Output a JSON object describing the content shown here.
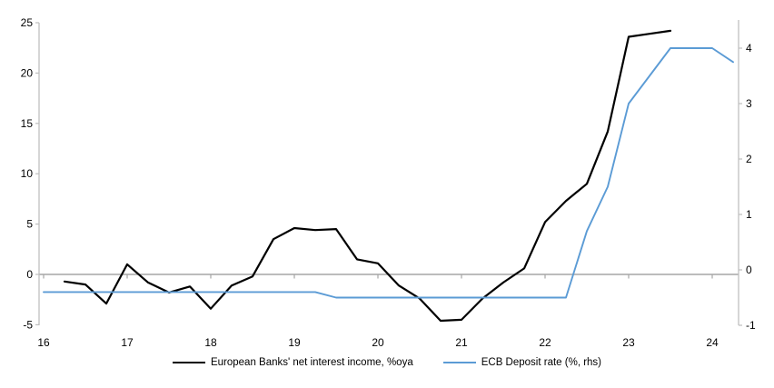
{
  "chart_data": {
    "type": "line",
    "x_axis": {
      "ticks": [
        16,
        17,
        18,
        19,
        20,
        21,
        22,
        23,
        24
      ],
      "tick_labels": [
        "16",
        "17",
        "18",
        "19",
        "20",
        "21",
        "22",
        "23",
        "24"
      ],
      "range": [
        15.95,
        24.37
      ]
    },
    "left_axis": {
      "ticks": [
        -5,
        0,
        5,
        10,
        15,
        20,
        25
      ],
      "tick_labels": [
        "-5",
        "0",
        "5",
        "10",
        "15",
        "20",
        "25"
      ],
      "range": [
        -5,
        25
      ]
    },
    "right_axis": {
      "ticks": [
        -1,
        0,
        1,
        2,
        3,
        4
      ],
      "tick_labels": [
        "-1",
        "0",
        "1",
        "2",
        "3",
        "4"
      ],
      "range": [
        -1,
        4.55
      ]
    },
    "grid": false,
    "zero_line": true,
    "legend_position": "bottom-center",
    "series": [
      {
        "name": "European Banks' net interest income, %oya",
        "axis": "left",
        "color": "#000000",
        "stroke_width": 2.2,
        "x": [
          16.25,
          16.5,
          16.75,
          17.0,
          17.25,
          17.5,
          17.75,
          18.0,
          18.25,
          18.5,
          18.75,
          19.0,
          19.25,
          19.5,
          19.75,
          20.0,
          20.25,
          20.5,
          20.75,
          21.0,
          21.25,
          21.5,
          21.75,
          22.0,
          22.25,
          22.5,
          22.75,
          23.0,
          23.25,
          23.5
        ],
        "values": [
          -0.7,
          -1.0,
          -2.9,
          1.0,
          -0.8,
          -1.8,
          -1.2,
          -3.4,
          -1.1,
          -0.2,
          3.5,
          4.6,
          4.4,
          4.5,
          1.5,
          1.1,
          -1.1,
          -2.4,
          -4.6,
          -4.5,
          -2.4,
          -0.8,
          0.6,
          5.2,
          7.3,
          9.0,
          14.2,
          23.6,
          23.9,
          24.2
        ]
      },
      {
        "name": "ECB Deposit rate (%, rhs)",
        "axis": "right",
        "color": "#5B9BD5",
        "stroke_width": 1.9,
        "x": [
          16.0,
          16.25,
          16.5,
          16.75,
          17.0,
          17.25,
          17.5,
          17.75,
          18.0,
          18.25,
          18.5,
          18.75,
          19.0,
          19.25,
          19.5,
          19.75,
          20.0,
          20.25,
          20.5,
          20.75,
          21.0,
          21.25,
          21.5,
          21.75,
          22.0,
          22.25,
          22.5,
          22.75,
          23.0,
          23.25,
          23.5,
          23.75,
          24.0,
          24.25
        ],
        "values": [
          -0.4,
          -0.4,
          -0.4,
          -0.4,
          -0.4,
          -0.4,
          -0.4,
          -0.4,
          -0.4,
          -0.4,
          -0.4,
          -0.4,
          -0.4,
          -0.4,
          -0.5,
          -0.5,
          -0.5,
          -0.5,
          -0.5,
          -0.5,
          -0.5,
          -0.5,
          -0.5,
          -0.5,
          -0.5,
          -0.5,
          0.7,
          1.5,
          3.0,
          3.5,
          4.0,
          4.0,
          4.0,
          3.75
        ]
      }
    ]
  },
  "colors": {
    "background": "#ffffff",
    "axis_line": "#bfbfbf",
    "zero_line": "#a6a6a6",
    "tick_text": "#000000"
  }
}
